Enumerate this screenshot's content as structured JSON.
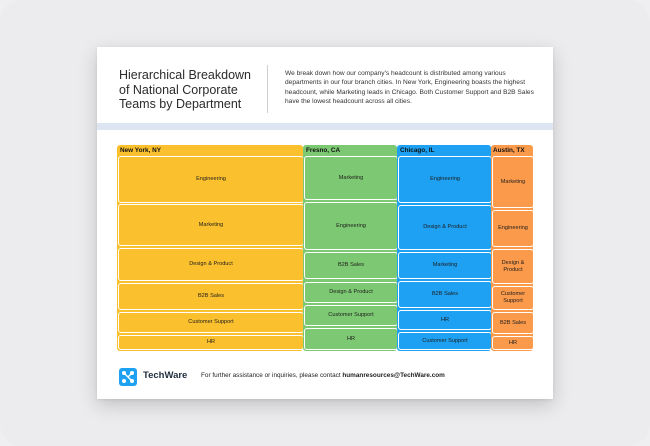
{
  "title": "Hierarchical Breakdown of National Corporate Teams by Department",
  "description": "We break down how our company's headcount is distributed among various departments in our four branch cities. In New York, Engineering boasts the highest headcount, while Marketing leads in Chicago. Both Customer Support and B2B Sales have the lowest headcount across all cities.",
  "colors": {
    "new_york": "#fbc02d",
    "fresno": "#7dc872",
    "chicago": "#1ea1f2",
    "austin": "#fb9a4b",
    "band": "#dde5f2"
  },
  "cities": [
    {
      "name": "New York, NY",
      "departments": [
        "Engineering",
        "Marketing",
        "Design & Product",
        "B2B Sales",
        "Customer Support",
        "HR"
      ]
    },
    {
      "name": "Fresno, CA",
      "departments": [
        "Marketing",
        "Engineering",
        "B2B Sales",
        "Design & Product",
        "Customer Support",
        "HR"
      ]
    },
    {
      "name": "Chicago, IL",
      "departments": [
        "Engineering",
        "Design & Product",
        "Marketing",
        "B2B Sales",
        "HR",
        "Customer Support"
      ]
    },
    {
      "name": "Austin, TX",
      "departments": [
        "Marketing",
        "Engineering",
        "Design & Product",
        "Customer Support",
        "B2B Sales",
        "HR"
      ]
    }
  ],
  "footer": {
    "logo_icon": "techware-logo-icon",
    "brand": "TechWare",
    "text": "For further assistance or inquiries, please contact ",
    "email": "humanresources@TechWare.com"
  }
}
